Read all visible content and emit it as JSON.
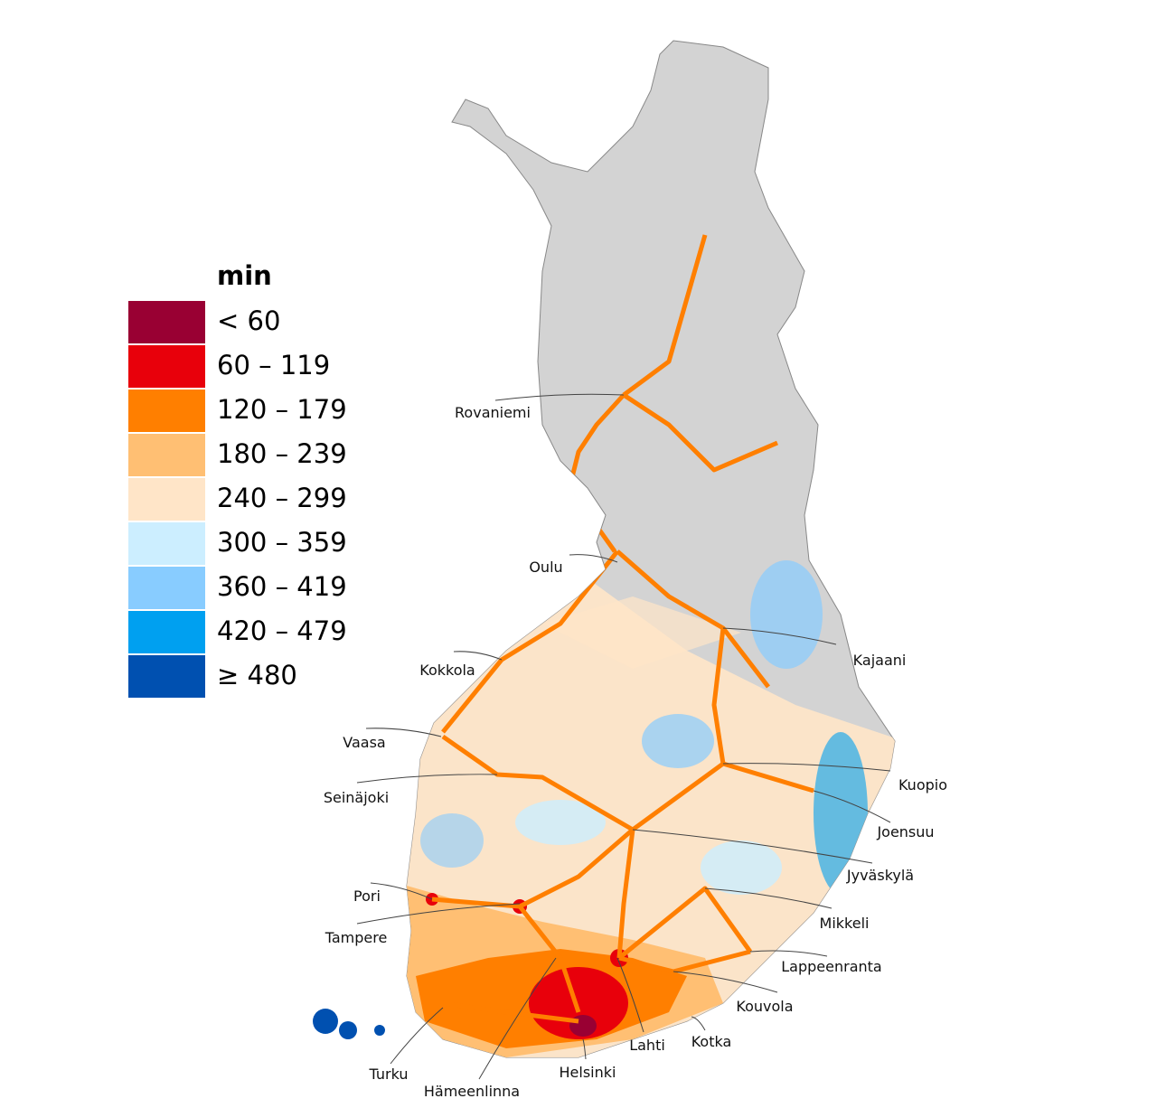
{
  "legend": {
    "title": "min",
    "items": [
      {
        "label": "< 60",
        "color": "#990033"
      },
      {
        "label": "60 – 119",
        "color": "#e8000b"
      },
      {
        "label": "120 – 179",
        "color": "#ff7f00"
      },
      {
        "label": "180 – 239",
        "color": "#ffbf73"
      },
      {
        "label": "240 – 299",
        "color": "#ffe5c8"
      },
      {
        "label": "300 – 359",
        "color": "#cceeff"
      },
      {
        "label": "360 – 419",
        "color": "#88ccff"
      },
      {
        "label": "420 – 479",
        "color": "#00a0f0"
      },
      {
        "label": "≥  480",
        "color": "#0050b0"
      }
    ]
  },
  "cities": [
    "Rovaniemi",
    "Oulu",
    "Kokkola",
    "Kajaani",
    "Vaasa",
    "Seinäjoki",
    "Kuopio",
    "Joensuu",
    "Jyväskylä",
    "Pori",
    "Tampere",
    "Mikkeli",
    "Lappeenranta",
    "Kouvola",
    "Kotka",
    "Lahti",
    "Helsinki",
    "Hämeenlinna",
    "Turku"
  ]
}
